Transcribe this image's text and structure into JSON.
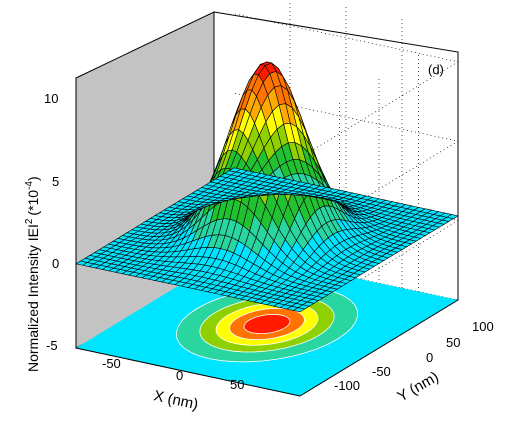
{
  "chart_data": {
    "type": "surface",
    "panel_label": "(d)",
    "zlabel": "Normalized Intensity IEI",
    "zlabel_sup": "2",
    "zlabel_unit": "(*10",
    "zlabel_unit_sup": "-4",
    "zlabel_unit_close": ")",
    "xlabel": "X (nm)",
    "ylabel": "Y (nm)",
    "z_ticks": [
      "-5",
      "0",
      "5",
      "10"
    ],
    "x_ticks": [
      "-50",
      "0",
      "50"
    ],
    "y_ticks": [
      "-100",
      "-50",
      "0",
      "50",
      "100"
    ],
    "xlim": [
      -100,
      100
    ],
    "ylim": [
      -100,
      100
    ],
    "zlim": [
      -5,
      12
    ],
    "surface": {
      "function": "gaussian",
      "peak_value": 11.5,
      "center": [
        0,
        0
      ],
      "sigma_nm": 28,
      "baseline": 0.3
    },
    "contour_projection": {
      "plane_z": -5,
      "visible": true
    },
    "colormap": [
      "#00e5ff",
      "#29d6a0",
      "#22c132",
      "#8fd000",
      "#ffff00",
      "#ffaa00",
      "#ff7300",
      "#ff1a00"
    ],
    "grid": true
  }
}
